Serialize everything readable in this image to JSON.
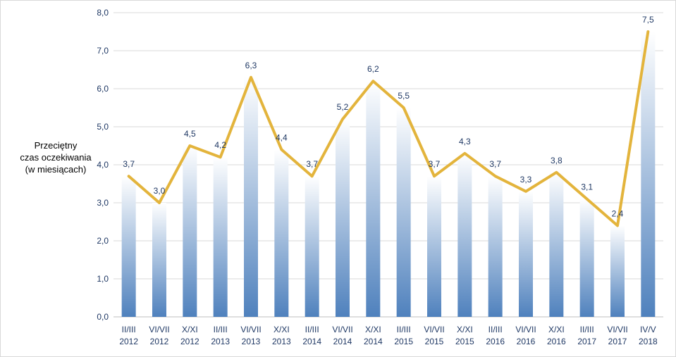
{
  "chart_data": {
    "type": "bar",
    "ylabel_lines": [
      "Przeciętny",
      "czas oczekiwania",
      "(w miesiącach)"
    ],
    "ylim": [
      0,
      8
    ],
    "yticks": [
      "0,0",
      "1,0",
      "2,0",
      "3,0",
      "4,0",
      "5,0",
      "6,0",
      "7,0",
      "8,0"
    ],
    "grid": true,
    "legend": "none",
    "categories": [
      [
        "II/III",
        "2012"
      ],
      [
        "VI/VII",
        "2012"
      ],
      [
        "X/XI",
        "2012"
      ],
      [
        "II/III",
        "2013"
      ],
      [
        "VI/VII",
        "2013"
      ],
      [
        "X/XI",
        "2013"
      ],
      [
        "II/III",
        "2014"
      ],
      [
        "VI/VII",
        "2014"
      ],
      [
        "X/XI",
        "2014"
      ],
      [
        "II/III",
        "2015"
      ],
      [
        "VI/VII",
        "2015"
      ],
      [
        "X/XI",
        "2015"
      ],
      [
        "II/III",
        "2016"
      ],
      [
        "VI/VII",
        "2016"
      ],
      [
        "X/XI",
        "2016"
      ],
      [
        "II/III",
        "2017"
      ],
      [
        "VI/VII",
        "2017"
      ],
      [
        "IV/V",
        "2018"
      ]
    ],
    "values": [
      3.7,
      3.0,
      4.5,
      4.2,
      6.3,
      4.4,
      3.7,
      5.2,
      6.2,
      5.5,
      3.7,
      4.3,
      3.7,
      3.3,
      3.8,
      3.1,
      2.4,
      7.5
    ],
    "labels": [
      "3,7",
      "3,0",
      "4,5",
      "4,2",
      "6,3",
      "4,4",
      "3,7",
      "5,2",
      "6,2",
      "5,5",
      "3,7",
      "4,3",
      "3,7",
      "3,3",
      "3,8",
      "3,1",
      "2,4",
      "7,5"
    ],
    "line_overlay": true,
    "colors": {
      "bar_top": "#ffffff",
      "bar_bottom": "#4f81bd",
      "line": "#e3b43c",
      "text": "#1f3864",
      "grid": "#d9d9d9"
    }
  }
}
